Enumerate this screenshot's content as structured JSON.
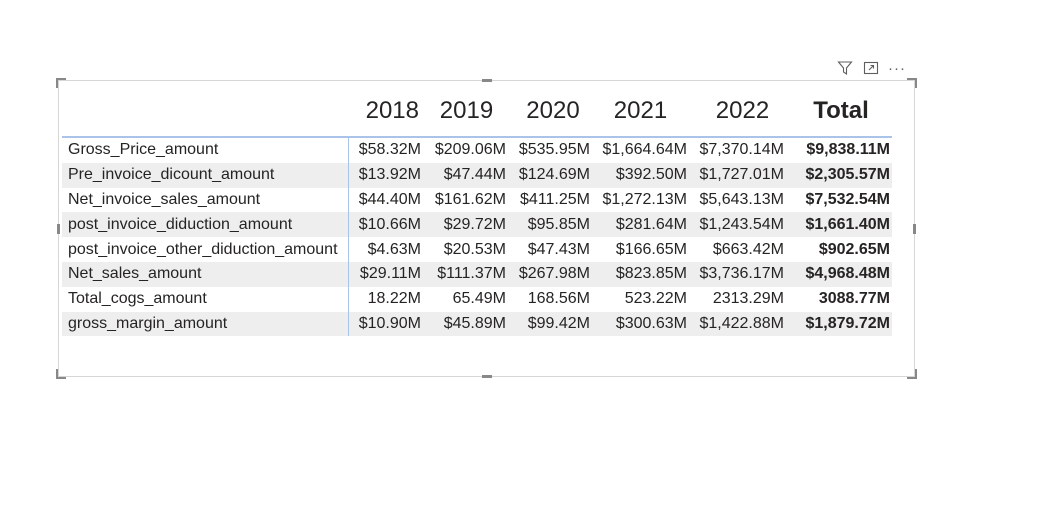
{
  "header_icons": [
    {
      "icon": "filter-icon"
    },
    {
      "icon": "focus-mode-icon"
    },
    {
      "icon": "more-options-icon",
      "label": "···"
    }
  ],
  "matrix": {
    "columns": [
      "2018",
      "2019",
      "2020",
      "2021",
      "2022",
      "Total"
    ],
    "rows": [
      {
        "label": "Gross_Price_amount",
        "values": [
          "$58.32M",
          "$209.06M",
          "$535.95M",
          "$1,664.64M",
          "$7,370.14M",
          "$9,838.11M"
        ]
      },
      {
        "label": "Pre_invoice_dicount_amount",
        "values": [
          "$13.92M",
          "$47.44M",
          "$124.69M",
          "$392.50M",
          "$1,727.01M",
          "$2,305.57M"
        ]
      },
      {
        "label": "Net_invoice_sales_amount",
        "values": [
          "$44.40M",
          "$161.62M",
          "$411.25M",
          "$1,272.13M",
          "$5,643.13M",
          "$7,532.54M"
        ]
      },
      {
        "label": "post_invoice_diduction_amount",
        "values": [
          "$10.66M",
          "$29.72M",
          "$95.85M",
          "$281.64M",
          "$1,243.54M",
          "$1,661.40M"
        ]
      },
      {
        "label": "post_invoice_other_diduction_amount",
        "values": [
          "$4.63M",
          "$20.53M",
          "$47.43M",
          "$166.65M",
          "$663.42M",
          "$902.65M"
        ]
      },
      {
        "label": "Net_sales_amount",
        "values": [
          "$29.11M",
          "$111.37M",
          "$267.98M",
          "$823.85M",
          "$3,736.17M",
          "$4,968.48M"
        ]
      },
      {
        "label": "Total_cogs_amount",
        "values": [
          "18.22M",
          "65.49M",
          "168.56M",
          "523.22M",
          "2313.29M",
          "3088.77M"
        ]
      },
      {
        "label": "gross_margin_amount",
        "values": [
          "$10.90M",
          "$45.89M",
          "$99.42M",
          "$300.63M",
          "$1,422.88M",
          "$1,879.72M"
        ]
      }
    ]
  },
  "colors": {
    "header_rule": "#a9c4e8",
    "alt_row": "#eeeeee",
    "text": "#252423"
  }
}
